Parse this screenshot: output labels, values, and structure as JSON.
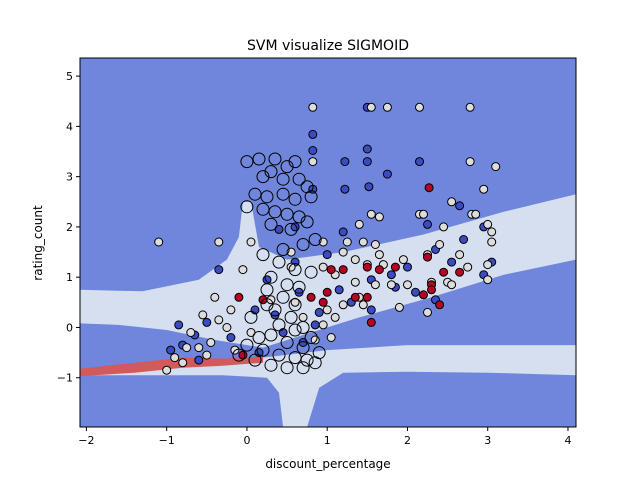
{
  "chart_data": {
    "type": "scatter",
    "title": "SVM visualize SIGMOID",
    "xlabel": "discount_percentage",
    "ylabel": "rating_count",
    "xlim": [
      -2.08,
      4.1
    ],
    "ylim": [
      -1.98,
      5.36
    ],
    "xticks": [
      -2,
      -1,
      0,
      1,
      2,
      3,
      4
    ],
    "yticks": [
      -1,
      0,
      1,
      2,
      3,
      4,
      5
    ],
    "xtick_labels": [
      "−2",
      "−1",
      "0",
      "1",
      "2",
      "3",
      "4"
    ],
    "ytick_labels": [
      "−1",
      "0",
      "1",
      "2",
      "3",
      "4",
      "5"
    ],
    "grid": false,
    "legend": "none",
    "colors": {
      "background_region": "#6f86dc",
      "light_region": "#d6dff0",
      "red_region": "#d25a5a",
      "class_blue": "#3b4cc0",
      "class_light": "#dddddd",
      "class_red": "#b40426",
      "edge": "#000000"
    },
    "decision_regions": [
      {
        "name": "upper-light-band",
        "class": "light",
        "polygon": [
          [
            -2.08,
            0.75
          ],
          [
            -1.3,
            0.72
          ],
          [
            -0.6,
            0.95
          ],
          [
            -0.25,
            1.35
          ],
          [
            -0.1,
            1.8
          ],
          [
            -0.05,
            2.5
          ],
          [
            0.05,
            2.5
          ],
          [
            0.15,
            1.6
          ],
          [
            0.5,
            1.35
          ],
          [
            1.2,
            1.5
          ],
          [
            2.2,
            1.85
          ],
          [
            3.2,
            2.3
          ],
          [
            4.1,
            2.65
          ],
          [
            4.1,
            1.35
          ],
          [
            3.2,
            1.05
          ],
          [
            2.3,
            0.6
          ],
          [
            1.4,
            0.2
          ],
          [
            0.7,
            -0.15
          ],
          [
            0.2,
            -0.4
          ],
          [
            -0.4,
            -0.25
          ],
          [
            -1.0,
            -0.05
          ],
          [
            -1.6,
            0.05
          ],
          [
            -2.08,
            0.08
          ]
        ]
      },
      {
        "name": "lower-light-band",
        "class": "light",
        "polygon": [
          [
            -2.08,
            -0.82
          ],
          [
            -1.0,
            -0.78
          ],
          [
            -0.3,
            -0.72
          ],
          [
            0.2,
            -0.6
          ],
          [
            1.0,
            -0.45
          ],
          [
            2.0,
            -0.35
          ],
          [
            3.0,
            -0.35
          ],
          [
            4.1,
            -0.35
          ],
          [
            4.1,
            -0.95
          ],
          [
            3.0,
            -0.9
          ],
          [
            2.0,
            -0.88
          ],
          [
            1.2,
            -0.9
          ],
          [
            0.9,
            -1.2
          ],
          [
            0.75,
            -1.98
          ],
          [
            0.45,
            -1.98
          ],
          [
            0.4,
            -1.3
          ],
          [
            0.25,
            -1.0
          ],
          [
            -0.3,
            -0.95
          ],
          [
            -1.0,
            -0.95
          ],
          [
            -2.08,
            -0.95
          ]
        ]
      },
      {
        "name": "red-sliver",
        "class": "red",
        "polygon": [
          [
            -2.08,
            -0.82
          ],
          [
            -1.4,
            -0.7
          ],
          [
            -0.8,
            -0.6
          ],
          [
            -0.3,
            -0.62
          ],
          [
            0.2,
            -0.58
          ],
          [
            0.2,
            -0.7
          ],
          [
            -0.3,
            -0.76
          ],
          [
            -0.8,
            -0.8
          ],
          [
            -1.4,
            -0.9
          ],
          [
            -2.08,
            -0.97
          ]
        ]
      }
    ],
    "series": [
      {
        "name": "class-blue",
        "color": "#3b4cc0",
        "points": [
          [
            1.5,
            4.38
          ],
          [
            0.82,
            3.84
          ],
          [
            0.82,
            3.52
          ],
          [
            1.22,
            3.3
          ],
          [
            1.5,
            3.3
          ],
          [
            1.5,
            3.55
          ],
          [
            2.15,
            3.3
          ],
          [
            1.75,
            3.05
          ],
          [
            0.82,
            2.75
          ],
          [
            1.22,
            2.75
          ],
          [
            1.52,
            2.8
          ],
          [
            2.65,
            2.42
          ],
          [
            2.95,
            2.0
          ],
          [
            -0.35,
            1.15
          ],
          [
            0.4,
            1.95
          ],
          [
            0.6,
            2.0
          ],
          [
            1.0,
            1.45
          ],
          [
            1.2,
            1.9
          ],
          [
            2.25,
            2.05
          ],
          [
            2.35,
            1.55
          ],
          [
            2.7,
            1.75
          ],
          [
            2.0,
            1.2
          ],
          [
            1.8,
            1.05
          ],
          [
            1.85,
            0.8
          ],
          [
            2.1,
            0.7
          ],
          [
            2.55,
            1.3
          ],
          [
            1.55,
            0.95
          ],
          [
            1.3,
            0.5
          ],
          [
            1.55,
            0.35
          ],
          [
            0.65,
            0.7
          ],
          [
            0.9,
            0.3
          ],
          [
            0.85,
            0.05
          ],
          [
            0.45,
            -0.1
          ],
          [
            -0.85,
            0.05
          ],
          [
            -0.95,
            -0.45
          ],
          [
            -0.65,
            -0.15
          ],
          [
            -0.5,
            0.1
          ],
          [
            -0.8,
            -0.35
          ],
          [
            -0.6,
            -0.65
          ],
          [
            0.1,
            0.35
          ],
          [
            0.25,
            0.95
          ],
          [
            0.6,
            1.3
          ],
          [
            1.15,
            0.75
          ],
          [
            2.35,
            0.55
          ],
          [
            2.95,
            1.05
          ],
          [
            3.05,
            1.3
          ],
          [
            0.7,
            -0.3
          ],
          [
            0.35,
            0.25
          ],
          [
            -0.2,
            -0.2
          ],
          [
            0.15,
            -0.5
          ]
        ]
      },
      {
        "name": "class-light",
        "color": "#dddddd",
        "points": [
          [
            0.82,
            4.38
          ],
          [
            1.75,
            4.38
          ],
          [
            2.15,
            4.38
          ],
          [
            2.78,
            4.38
          ],
          [
            1.55,
            4.38
          ],
          [
            0.82,
            3.3
          ],
          [
            2.78,
            3.3
          ],
          [
            3.1,
            3.2
          ],
          [
            2.95,
            2.75
          ],
          [
            2.55,
            2.5
          ],
          [
            2.15,
            2.25
          ],
          [
            2.2,
            2.25
          ],
          [
            1.55,
            2.25
          ],
          [
            1.65,
            2.2
          ],
          [
            2.45,
            2.0
          ],
          [
            2.8,
            2.25
          ],
          [
            2.85,
            2.25
          ],
          [
            3.0,
            2.05
          ],
          [
            3.05,
            1.9
          ],
          [
            3.05,
            1.7
          ],
          [
            1.4,
            2.05
          ],
          [
            1.25,
            1.7
          ],
          [
            1.45,
            1.7
          ],
          [
            1.6,
            1.65
          ],
          [
            1.65,
            1.45
          ],
          [
            0.95,
            1.7
          ],
          [
            1.2,
            1.5
          ],
          [
            1.35,
            1.35
          ],
          [
            1.5,
            1.25
          ],
          [
            1.7,
            1.25
          ],
          [
            1.95,
            1.35
          ],
          [
            2.25,
            1.45
          ],
          [
            2.4,
            1.65
          ],
          [
            2.65,
            1.45
          ],
          [
            2.75,
            1.2
          ],
          [
            2.5,
            0.9
          ],
          [
            2.3,
            0.9
          ],
          [
            2.0,
            0.85
          ],
          [
            1.8,
            0.85
          ],
          [
            1.9,
            0.4
          ],
          [
            2.25,
            0.3
          ],
          [
            2.55,
            0.85
          ],
          [
            3.0,
            0.95
          ],
          [
            3.0,
            1.25
          ],
          [
            -1.1,
            1.7
          ],
          [
            -0.35,
            1.7
          ],
          [
            0.05,
            1.7
          ],
          [
            -0.05,
            1.15
          ],
          [
            0.55,
            1.2
          ],
          [
            0.55,
            1.5
          ],
          [
            0.95,
            1.2
          ],
          [
            1.1,
            1.05
          ],
          [
            1.35,
            0.9
          ],
          [
            1.6,
            0.85
          ],
          [
            1.4,
            0.6
          ],
          [
            1.45,
            0.45
          ],
          [
            1.2,
            0.45
          ],
          [
            1.0,
            0.35
          ],
          [
            1.1,
            0.2
          ],
          [
            0.95,
            0.05
          ],
          [
            -0.4,
            0.6
          ],
          [
            -0.2,
            0.35
          ],
          [
            -0.35,
            0.15
          ],
          [
            -0.55,
            0.25
          ],
          [
            -0.7,
            -0.1
          ],
          [
            -0.9,
            -0.6
          ],
          [
            -0.75,
            -0.4
          ],
          [
            -0.5,
            -0.55
          ],
          [
            -0.25,
            0.0
          ],
          [
            0.05,
            -0.1
          ],
          [
            0.6,
            0.5
          ],
          [
            0.7,
            0.2
          ],
          [
            0.3,
            0.55
          ],
          [
            -0.15,
            -0.45
          ],
          [
            -1.0,
            -0.85
          ],
          [
            -0.8,
            -0.7
          ],
          [
            -0.6,
            -0.4
          ],
          [
            -0.45,
            -0.3
          ],
          [
            0.85,
            -0.25
          ],
          [
            1.05,
            -0.2
          ]
        ]
      },
      {
        "name": "class-red",
        "color": "#b40426",
        "points": [
          [
            2.27,
            2.78
          ],
          [
            2.25,
            1.4
          ],
          [
            2.45,
            1.1
          ],
          [
            2.65,
            1.1
          ],
          [
            2.3,
            0.85
          ],
          [
            2.3,
            0.75
          ],
          [
            2.4,
            0.45
          ],
          [
            2.2,
            0.65
          ],
          [
            1.55,
            0.1
          ],
          [
            1.2,
            1.15
          ],
          [
            1.05,
            1.15
          ],
          [
            1.5,
            1.2
          ],
          [
            1.65,
            1.15
          ],
          [
            1.85,
            1.2
          ],
          [
            1.35,
            0.6
          ],
          [
            1.5,
            0.6
          ],
          [
            -0.1,
            0.6
          ],
          [
            0.2,
            0.55
          ],
          [
            0.95,
            0.5
          ],
          [
            0.8,
            0.6
          ],
          [
            1.0,
            0.7
          ],
          [
            -0.05,
            -0.55
          ]
        ]
      },
      {
        "name": "class-open-large",
        "color": "none",
        "points": [
          [
            0.0,
            3.3
          ],
          [
            0.15,
            3.35
          ],
          [
            0.35,
            3.35
          ],
          [
            0.5,
            3.2
          ],
          [
            0.6,
            3.3
          ],
          [
            0.3,
            3.1
          ],
          [
            0.2,
            3.0
          ],
          [
            0.45,
            2.95
          ],
          [
            0.65,
            2.95
          ],
          [
            0.75,
            2.8
          ],
          [
            0.1,
            2.65
          ],
          [
            0.25,
            2.6
          ],
          [
            0.45,
            2.65
          ],
          [
            0.6,
            2.55
          ],
          [
            0.8,
            2.6
          ],
          [
            0.0,
            2.4
          ],
          [
            0.2,
            2.35
          ],
          [
            0.35,
            2.3
          ],
          [
            0.5,
            2.25
          ],
          [
            0.65,
            2.2
          ],
          [
            0.75,
            2.1
          ],
          [
            0.3,
            2.05
          ],
          [
            0.55,
            1.95
          ],
          [
            0.85,
            1.75
          ],
          [
            0.7,
            1.65
          ],
          [
            0.45,
            1.55
          ],
          [
            0.2,
            1.45
          ],
          [
            0.4,
            1.3
          ],
          [
            0.6,
            1.15
          ],
          [
            0.8,
            1.1
          ],
          [
            0.3,
            1.0
          ],
          [
            0.5,
            0.85
          ],
          [
            0.65,
            0.8
          ],
          [
            0.25,
            0.75
          ],
          [
            0.45,
            0.6
          ],
          [
            0.6,
            0.45
          ],
          [
            0.35,
            0.35
          ],
          [
            0.55,
            0.2
          ],
          [
            0.4,
            0.05
          ],
          [
            0.6,
            -0.05
          ],
          [
            0.3,
            -0.15
          ],
          [
            0.5,
            -0.3
          ],
          [
            0.7,
            -0.4
          ],
          [
            0.2,
            -0.45
          ],
          [
            0.4,
            -0.55
          ],
          [
            0.6,
            -0.6
          ],
          [
            0.75,
            -0.65
          ],
          [
            0.1,
            -0.65
          ],
          [
            0.3,
            -0.75
          ],
          [
            0.5,
            -0.8
          ],
          [
            0.7,
            -0.8
          ],
          [
            0.85,
            -0.7
          ],
          [
            0.0,
            -0.35
          ],
          [
            -0.1,
            -0.55
          ],
          [
            0.15,
            -0.2
          ],
          [
            0.8,
            -0.2
          ],
          [
            0.9,
            -0.5
          ],
          [
            0.05,
            0.2
          ],
          [
            0.25,
            0.45
          ],
          [
            0.7,
            0.0
          ]
        ]
      }
    ]
  }
}
